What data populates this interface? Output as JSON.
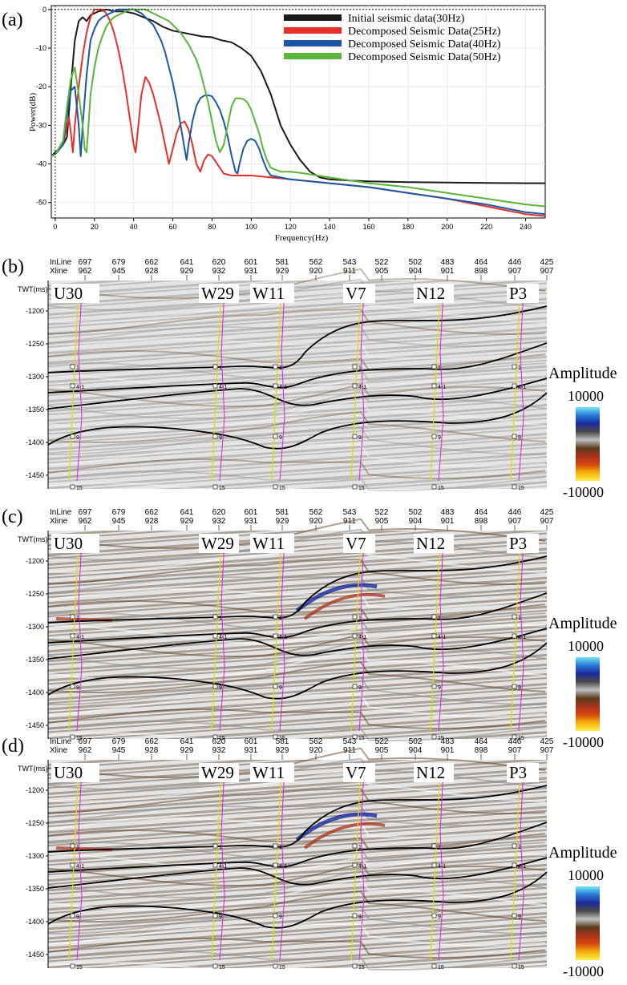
{
  "panel_labels": [
    "(a)",
    "(b)",
    "(c)",
    "(d)"
  ],
  "chart_data": [
    {
      "type": "line",
      "xlabel": "Frequency(Hz)",
      "ylabel": "Power(dB)",
      "xlim": [
        -2,
        250
      ],
      "ylim": [
        -54,
        1
      ],
      "xticks": [
        0,
        20,
        40,
        60,
        80,
        100,
        120,
        140,
        160,
        180,
        200,
        220,
        240
      ],
      "yticks": [
        0,
        -10,
        -20,
        -30,
        -40,
        -50
      ],
      "legend_position": "top-right",
      "series": [
        {
          "name": "Initial seismic data(30Hz)",
          "color": "#1a1a1a",
          "x": [
            -2,
            0,
            4,
            6,
            8,
            10,
            12,
            14,
            16,
            18,
            20,
            22,
            24,
            26,
            28,
            30,
            35,
            40,
            45,
            50,
            55,
            60,
            65,
            70,
            75,
            80,
            85,
            90,
            95,
            100,
            105,
            110,
            115,
            120,
            125,
            130,
            135,
            140,
            150,
            160,
            180,
            200,
            220,
            240,
            250
          ],
          "y": [
            -38,
            -37,
            -35,
            -33,
            -20,
            -8,
            -3,
            -2,
            -3,
            -1.5,
            -1,
            -0.5,
            -0.3,
            0,
            -0.2,
            -0.5,
            -0.5,
            -1,
            -2,
            -3,
            -4.5,
            -5.5,
            -6,
            -6.5,
            -7,
            -7.2,
            -8,
            -8.5,
            -10,
            -12,
            -16,
            -22,
            -30,
            -35,
            -39,
            -42,
            -43.5,
            -44,
            -44.3,
            -44.5,
            -44.7,
            -44.8,
            -44.9,
            -45,
            -45
          ]
        },
        {
          "name": "Decomposed Seismic Data(25Hz)",
          "color": "#e8302a",
          "x": [
            -2,
            0,
            4,
            6,
            7,
            8,
            9,
            10,
            12,
            14,
            16,
            18,
            20,
            22,
            24,
            26,
            28,
            30,
            32,
            34,
            36,
            38,
            40,
            41,
            42,
            44,
            46,
            48,
            50,
            52,
            54,
            56,
            58,
            60,
            62,
            64,
            66,
            68,
            70,
            72,
            74,
            76,
            78,
            80,
            82,
            84,
            86,
            90,
            95,
            100,
            110,
            120,
            140,
            160,
            180,
            200,
            220,
            240,
            250
          ],
          "y": [
            -38,
            -37.5,
            -35,
            -30,
            -28,
            -32,
            -37,
            -30,
            -20,
            -12,
            -6,
            -2,
            0,
            0,
            0,
            -1,
            -3,
            -6,
            -10,
            -15,
            -21,
            -28,
            -35,
            -37,
            -32,
            -22,
            -17.5,
            -19,
            -22,
            -26,
            -30,
            -35,
            -40,
            -36,
            -32,
            -29.5,
            -29,
            -31,
            -35,
            -40,
            -42,
            -39,
            -37.5,
            -38,
            -39.5,
            -41,
            -42.5,
            -43,
            -43,
            -43,
            -43.5,
            -44,
            -45,
            -46,
            -47.5,
            -49,
            -51,
            -53,
            -53.5
          ]
        },
        {
          "name": "Decomposed Seismic Data(40Hz)",
          "color": "#1b57a6",
          "x": [
            -2,
            0,
            4,
            6,
            8,
            10,
            12,
            13,
            14,
            16,
            18,
            20,
            22,
            24,
            26,
            28,
            30,
            32,
            34,
            36,
            38,
            40,
            42,
            44,
            46,
            48,
            50,
            52,
            54,
            56,
            58,
            60,
            62,
            64,
            66,
            67,
            68,
            70,
            72,
            74,
            76,
            78,
            80,
            82,
            84,
            86,
            88,
            90,
            92,
            93,
            94,
            96,
            98,
            100,
            102,
            104,
            106,
            108,
            110,
            115,
            120,
            140,
            160,
            180,
            200,
            220,
            240,
            250
          ],
          "y": [
            -38,
            -37.5,
            -35,
            -27,
            -21,
            -20,
            -30,
            -38,
            -30,
            -17,
            -8,
            -5,
            -3,
            -2,
            -1.5,
            -1,
            -0.5,
            0,
            0,
            0,
            0,
            0,
            -0.5,
            -1,
            -2,
            -3,
            -4,
            -6,
            -8,
            -11,
            -15,
            -19,
            -24,
            -30,
            -36,
            -39,
            -35,
            -29,
            -25,
            -23,
            -22.3,
            -22.2,
            -22.5,
            -24,
            -26,
            -29,
            -33,
            -38,
            -42,
            -42.5,
            -40,
            -36,
            -34,
            -33.5,
            -34,
            -36,
            -39,
            -41.5,
            -43,
            -43.5,
            -44,
            -45,
            -46,
            -47.5,
            -49,
            -50.5,
            -52.5,
            -53
          ]
        },
        {
          "name": "Decomposed Seismic Data(50Hz)",
          "color": "#5bb53a",
          "x": [
            -2,
            0,
            4,
            6,
            8,
            10,
            12,
            14,
            15,
            16,
            17,
            18,
            20,
            22,
            24,
            26,
            28,
            30,
            32,
            34,
            36,
            38,
            40,
            42,
            44,
            46,
            48,
            50,
            52,
            54,
            56,
            58,
            60,
            62,
            64,
            66,
            68,
            70,
            72,
            74,
            76,
            78,
            80,
            82,
            84,
            86,
            88,
            90,
            92,
            94,
            96,
            98,
            100,
            102,
            104,
            106,
            108,
            110,
            115,
            120,
            125,
            140,
            160,
            180,
            200,
            220,
            240,
            250
          ],
          "y": [
            -38,
            -37.5,
            -34,
            -25,
            -18,
            -15,
            -22,
            -30,
            -36,
            -37,
            -30,
            -22,
            -15,
            -10,
            -7,
            -4.5,
            -3,
            -2,
            -1.5,
            -1,
            -0.5,
            0,
            0,
            0,
            0,
            0,
            -0.5,
            -1,
            -1.5,
            -2,
            -2.5,
            -3,
            -4,
            -5,
            -6,
            -7.5,
            -9,
            -11,
            -13,
            -16,
            -20,
            -24,
            -29,
            -34,
            -37,
            -35,
            -30,
            -25,
            -23,
            -23,
            -23.2,
            -24,
            -26,
            -29,
            -32,
            -36,
            -39,
            -41,
            -42,
            -42,
            -42.3,
            -43.5,
            -45,
            -46,
            -47.5,
            -49,
            -50.5,
            -51
          ]
        }
      ]
    },
    {
      "type": "heatmap",
      "panel": "(b)",
      "ylabel": "TWT(ms)",
      "yticks": [
        -1200,
        -1250,
        -1300,
        -1350,
        -1400,
        -1450
      ]
    },
    {
      "type": "heatmap",
      "panel": "(c)",
      "ylabel": "TWT(ms)",
      "yticks": [
        -1200,
        -1250,
        -1300,
        -1350,
        -1400,
        -1450
      ]
    },
    {
      "type": "heatmap",
      "panel": "(d)",
      "ylabel": "TWT(ms)",
      "yticks": [
        -1200,
        -1250,
        -1300,
        -1350,
        -1400,
        -1450
      ]
    }
  ],
  "section": {
    "twt_label": "TWT(ms)",
    "header_labels": [
      "InLine",
      "Xline"
    ],
    "inline_values": [
      "697",
      "679",
      "662",
      "641",
      "620",
      "601",
      "581",
      "562",
      "543",
      "522",
      "502",
      "483",
      "464",
      "446",
      "425"
    ],
    "xline_values": [
      "962",
      "945",
      "928",
      "929",
      "932",
      "931",
      "929",
      "920",
      "911",
      "905",
      "904",
      "901",
      "898",
      "907",
      "907"
    ],
    "wells": [
      "U30",
      "W29",
      "W11",
      "V7",
      "N12",
      "P3"
    ],
    "marker_labels": [
      "1",
      "4-1",
      "9",
      "15"
    ],
    "yticks": [
      "-1200",
      "-1250",
      "-1300",
      "-1350",
      "-1400",
      "-1450"
    ]
  },
  "colorbar": {
    "title": "Amplitude",
    "max": "10000",
    "min": "-10000",
    "colors": [
      "#6fe9f5",
      "#2a78d8",
      "#1a2b9a",
      "#4a4a4a",
      "#bfbfbf",
      "#5a3c1c",
      "#a8321b",
      "#d9480f",
      "#f3b20a",
      "#fff04a"
    ]
  }
}
